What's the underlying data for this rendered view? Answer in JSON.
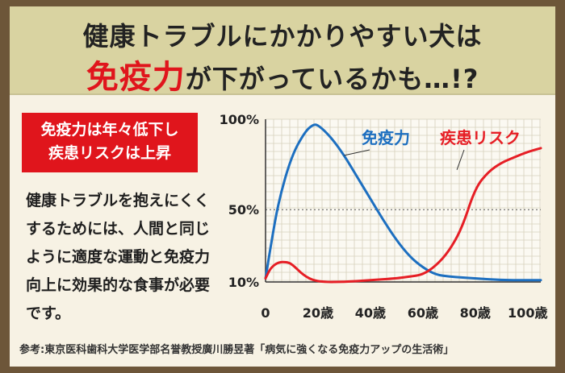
{
  "header": {
    "line1": "健康トラブルにかかりやすい犬は",
    "line2_highlight": "免疫力",
    "line2_rest": "が下がっているかも…!?"
  },
  "badge": {
    "line1": "免疫力は年々低下し",
    "line2": "疾患リスクは上昇"
  },
  "body_text": "健康トラブルを抱えにくくするためには、人間と同じように適度な運動と免疫力向上に効果的な食事が必要です。",
  "reference": "参考:東京医科歯科大学医学部名誉教授廣川勝昱著「病気に強くなる免疫力アップの生活術」",
  "colors": {
    "immunity": "#1d6fc0",
    "risk": "#e61e25",
    "accent": "#e0151c",
    "header_bg": "#d9d3a1"
  },
  "chart_data": {
    "type": "line",
    "xlabel": "",
    "ylabel": "",
    "x_ticks": [
      "0",
      "20歳",
      "40歳",
      "60歳",
      "80歳",
      "100歳"
    ],
    "x_tick_values": [
      0,
      20,
      40,
      60,
      80,
      100
    ],
    "y_ticks": [
      "10%",
      "50%",
      "100%"
    ],
    "y_tick_values": [
      10,
      50,
      100
    ],
    "xlim": [
      0,
      105
    ],
    "ylim": [
      10,
      100
    ],
    "reference_lines": [
      50,
      10
    ],
    "series": [
      {
        "name": "免疫力",
        "color": "#1d6fc0",
        "x": [
          0,
          2,
          5,
          10,
          15,
          18,
          20,
          25,
          30,
          35,
          40,
          45,
          50,
          55,
          60,
          65,
          70,
          75,
          80,
          90,
          100,
          105
        ],
        "y": [
          12,
          30,
          55,
          80,
          93,
          97,
          97,
          90,
          80,
          68,
          56,
          44,
          33,
          24,
          18,
          14,
          13,
          12.5,
          12,
          11,
          11,
          11
        ]
      },
      {
        "name": "疾患リスク",
        "color": "#e61e25",
        "x": [
          0,
          2,
          5,
          8,
          10,
          15,
          20,
          30,
          40,
          50,
          55,
          60,
          65,
          70,
          75,
          80,
          85,
          90,
          95,
          100,
          105
        ],
        "y": [
          12,
          18,
          21,
          21,
          20,
          13,
          10,
          10,
          11,
          12,
          13,
          14,
          19,
          27,
          40,
          62,
          71,
          76,
          79,
          82,
          84
        ]
      }
    ]
  }
}
